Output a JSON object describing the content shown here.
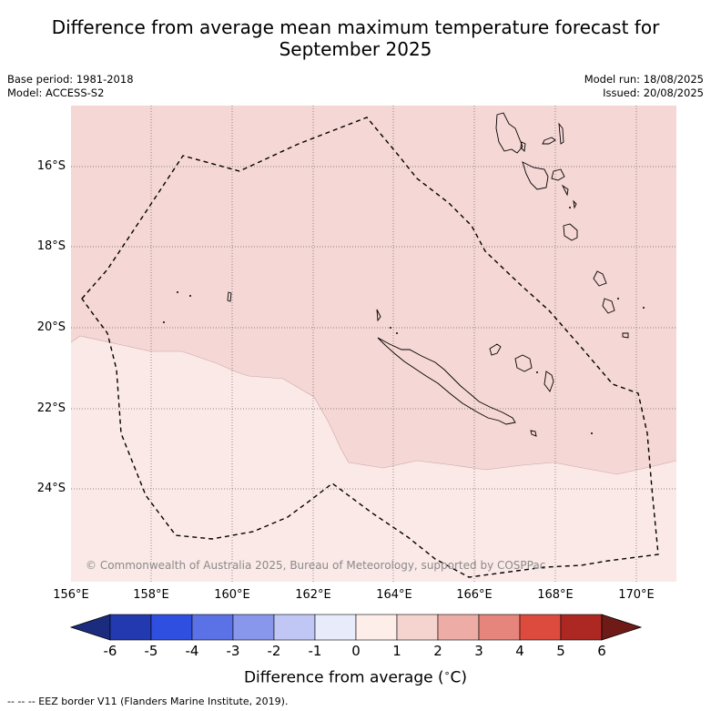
{
  "title_line1": "Difference from average mean maximum temperature forecast for",
  "title_line2": "September 2025",
  "meta": {
    "base_period": "Base period: 1981-2018",
    "model": "Model: ACCESS-S2",
    "model_run": "Model run: 18/08/2025",
    "issued": "Issued: 20/08/2025"
  },
  "map": {
    "lat_labels": [
      "16°S",
      "18°S",
      "20°S",
      "22°S",
      "24°S"
    ],
    "lon_labels": [
      "156°E",
      "158°E",
      "160°E",
      "162°E",
      "164°E",
      "166°E",
      "168°E",
      "170°E"
    ],
    "copyright": "© Commonwealth of Australia 2025, Bureau of Meteorology, supported by COSPPac",
    "fill_colors": {
      "class_0_to_1": "#fbe9e7",
      "class_1_to_2": "#f5d7d5"
    }
  },
  "colorbar": {
    "labels": [
      "-6",
      "-5",
      "-4",
      "-3",
      "-2",
      "-1",
      "0",
      "1",
      "2",
      "3",
      "4",
      "5",
      "6"
    ],
    "colors": [
      "#1b2c7e",
      "#2339b0",
      "#2f4fe0",
      "#5a72e6",
      "#8896ec",
      "#c0c7f4",
      "#e8ecfa",
      "#fdeeea",
      "#f5d3cf",
      "#eeaca6",
      "#e5857c",
      "#dd4b3e",
      "#ad2823",
      "#6e1a17"
    ],
    "title": "Difference from average (",
    "unit_circ": "∘",
    "unit_tail": "C)"
  },
  "footer": "--  --  -- EEZ border V11 (Flanders Marine Institute, 2019)."
}
